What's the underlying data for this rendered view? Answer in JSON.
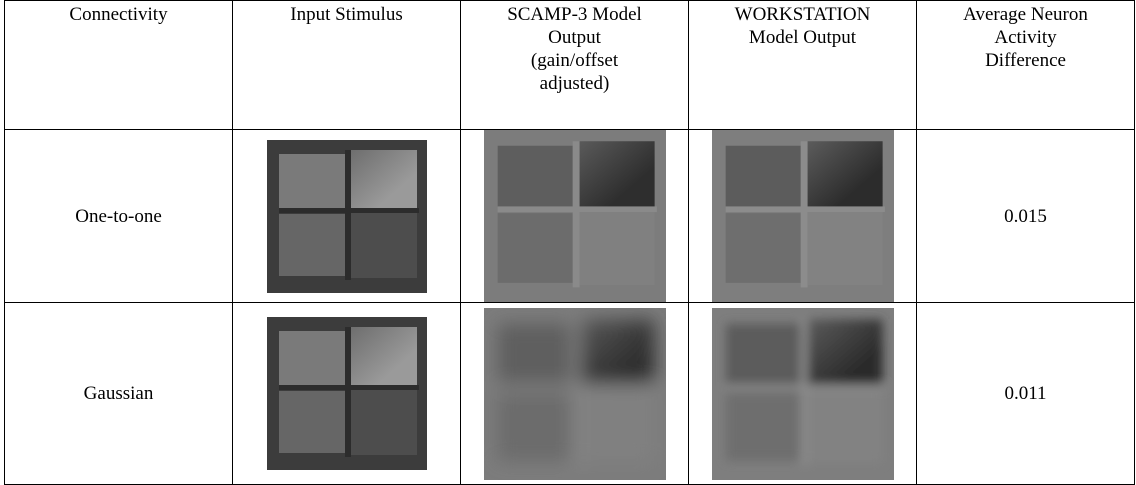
{
  "table": {
    "headers": [
      [
        "Connectivity"
      ],
      [
        "Input Stimulus"
      ],
      [
        "SCAMP-3 Model",
        "Output",
        "(gain/offset",
        "adjusted)"
      ],
      [
        "WORKSTATION",
        "Model Output"
      ],
      [
        "Average Neuron",
        "Activity",
        "Difference"
      ]
    ],
    "rows": [
      {
        "connectivity": "One-to-one",
        "difference": 0.015
      },
      {
        "connectivity": "Gaussian",
        "difference": 0.011
      }
    ]
  }
}
